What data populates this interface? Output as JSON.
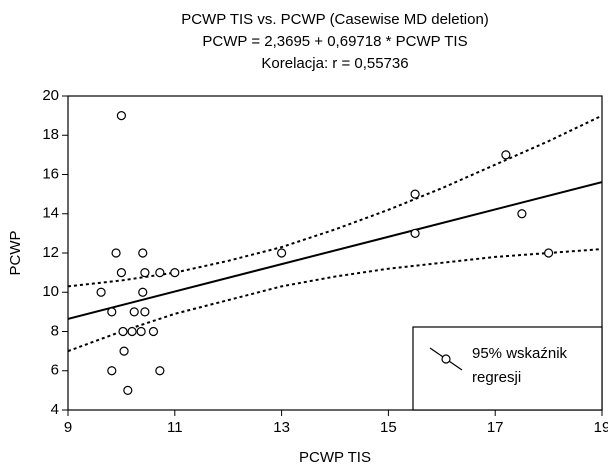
{
  "chart_data": {
    "type": "scatter",
    "title_lines": [
      "PCWP TIS vs. PCWP (Casewise MD deletion)",
      "PCWP = 2,3695 + 0,69718 * PCWP TIS",
      "Korelacja: r = 0,55736"
    ],
    "xlabel": "PCWP TIS",
    "ylabel": "PCWP",
    "xlim": [
      9,
      19
    ],
    "ylim": [
      4,
      20
    ],
    "xticks": [
      9,
      11,
      13,
      15,
      17,
      19
    ],
    "yticks": [
      4,
      6,
      8,
      10,
      12,
      14,
      16,
      18,
      20
    ],
    "x": [
      10,
      9.62,
      9.82,
      9.82,
      9.9,
      10,
      10.03,
      10.05,
      10.12,
      10.2,
      10.24,
      10.37,
      10.4,
      10.44,
      10.4,
      10.44,
      10.6,
      10.72,
      10.72,
      11,
      13,
      15.5,
      15.5,
      17.2,
      17.5,
      18
    ],
    "values": [
      19,
      10,
      9,
      6,
      12,
      11,
      8,
      7,
      5,
      8,
      9,
      8,
      12,
      11,
      10,
      9,
      8,
      11,
      6,
      11,
      12,
      15,
      13,
      17,
      14,
      12
    ],
    "regression": {
      "intercept": 2.3695,
      "slope": 0.69718
    },
    "band": {
      "name_lines": [
        "95% wskaźnik",
        "regresji"
      ],
      "x": [
        9,
        10,
        11,
        12,
        13,
        14,
        15,
        16,
        17,
        18,
        19
      ],
      "upper": [
        10.3,
        10.6,
        11.0,
        11.6,
        12.3,
        13.2,
        14.2,
        15.3,
        16.5,
        17.7,
        19.0
      ],
      "lower": [
        7.0,
        8.0,
        8.9,
        9.6,
        10.3,
        10.8,
        11.2,
        11.5,
        11.8,
        12.0,
        12.2
      ]
    },
    "color": "#000000"
  }
}
